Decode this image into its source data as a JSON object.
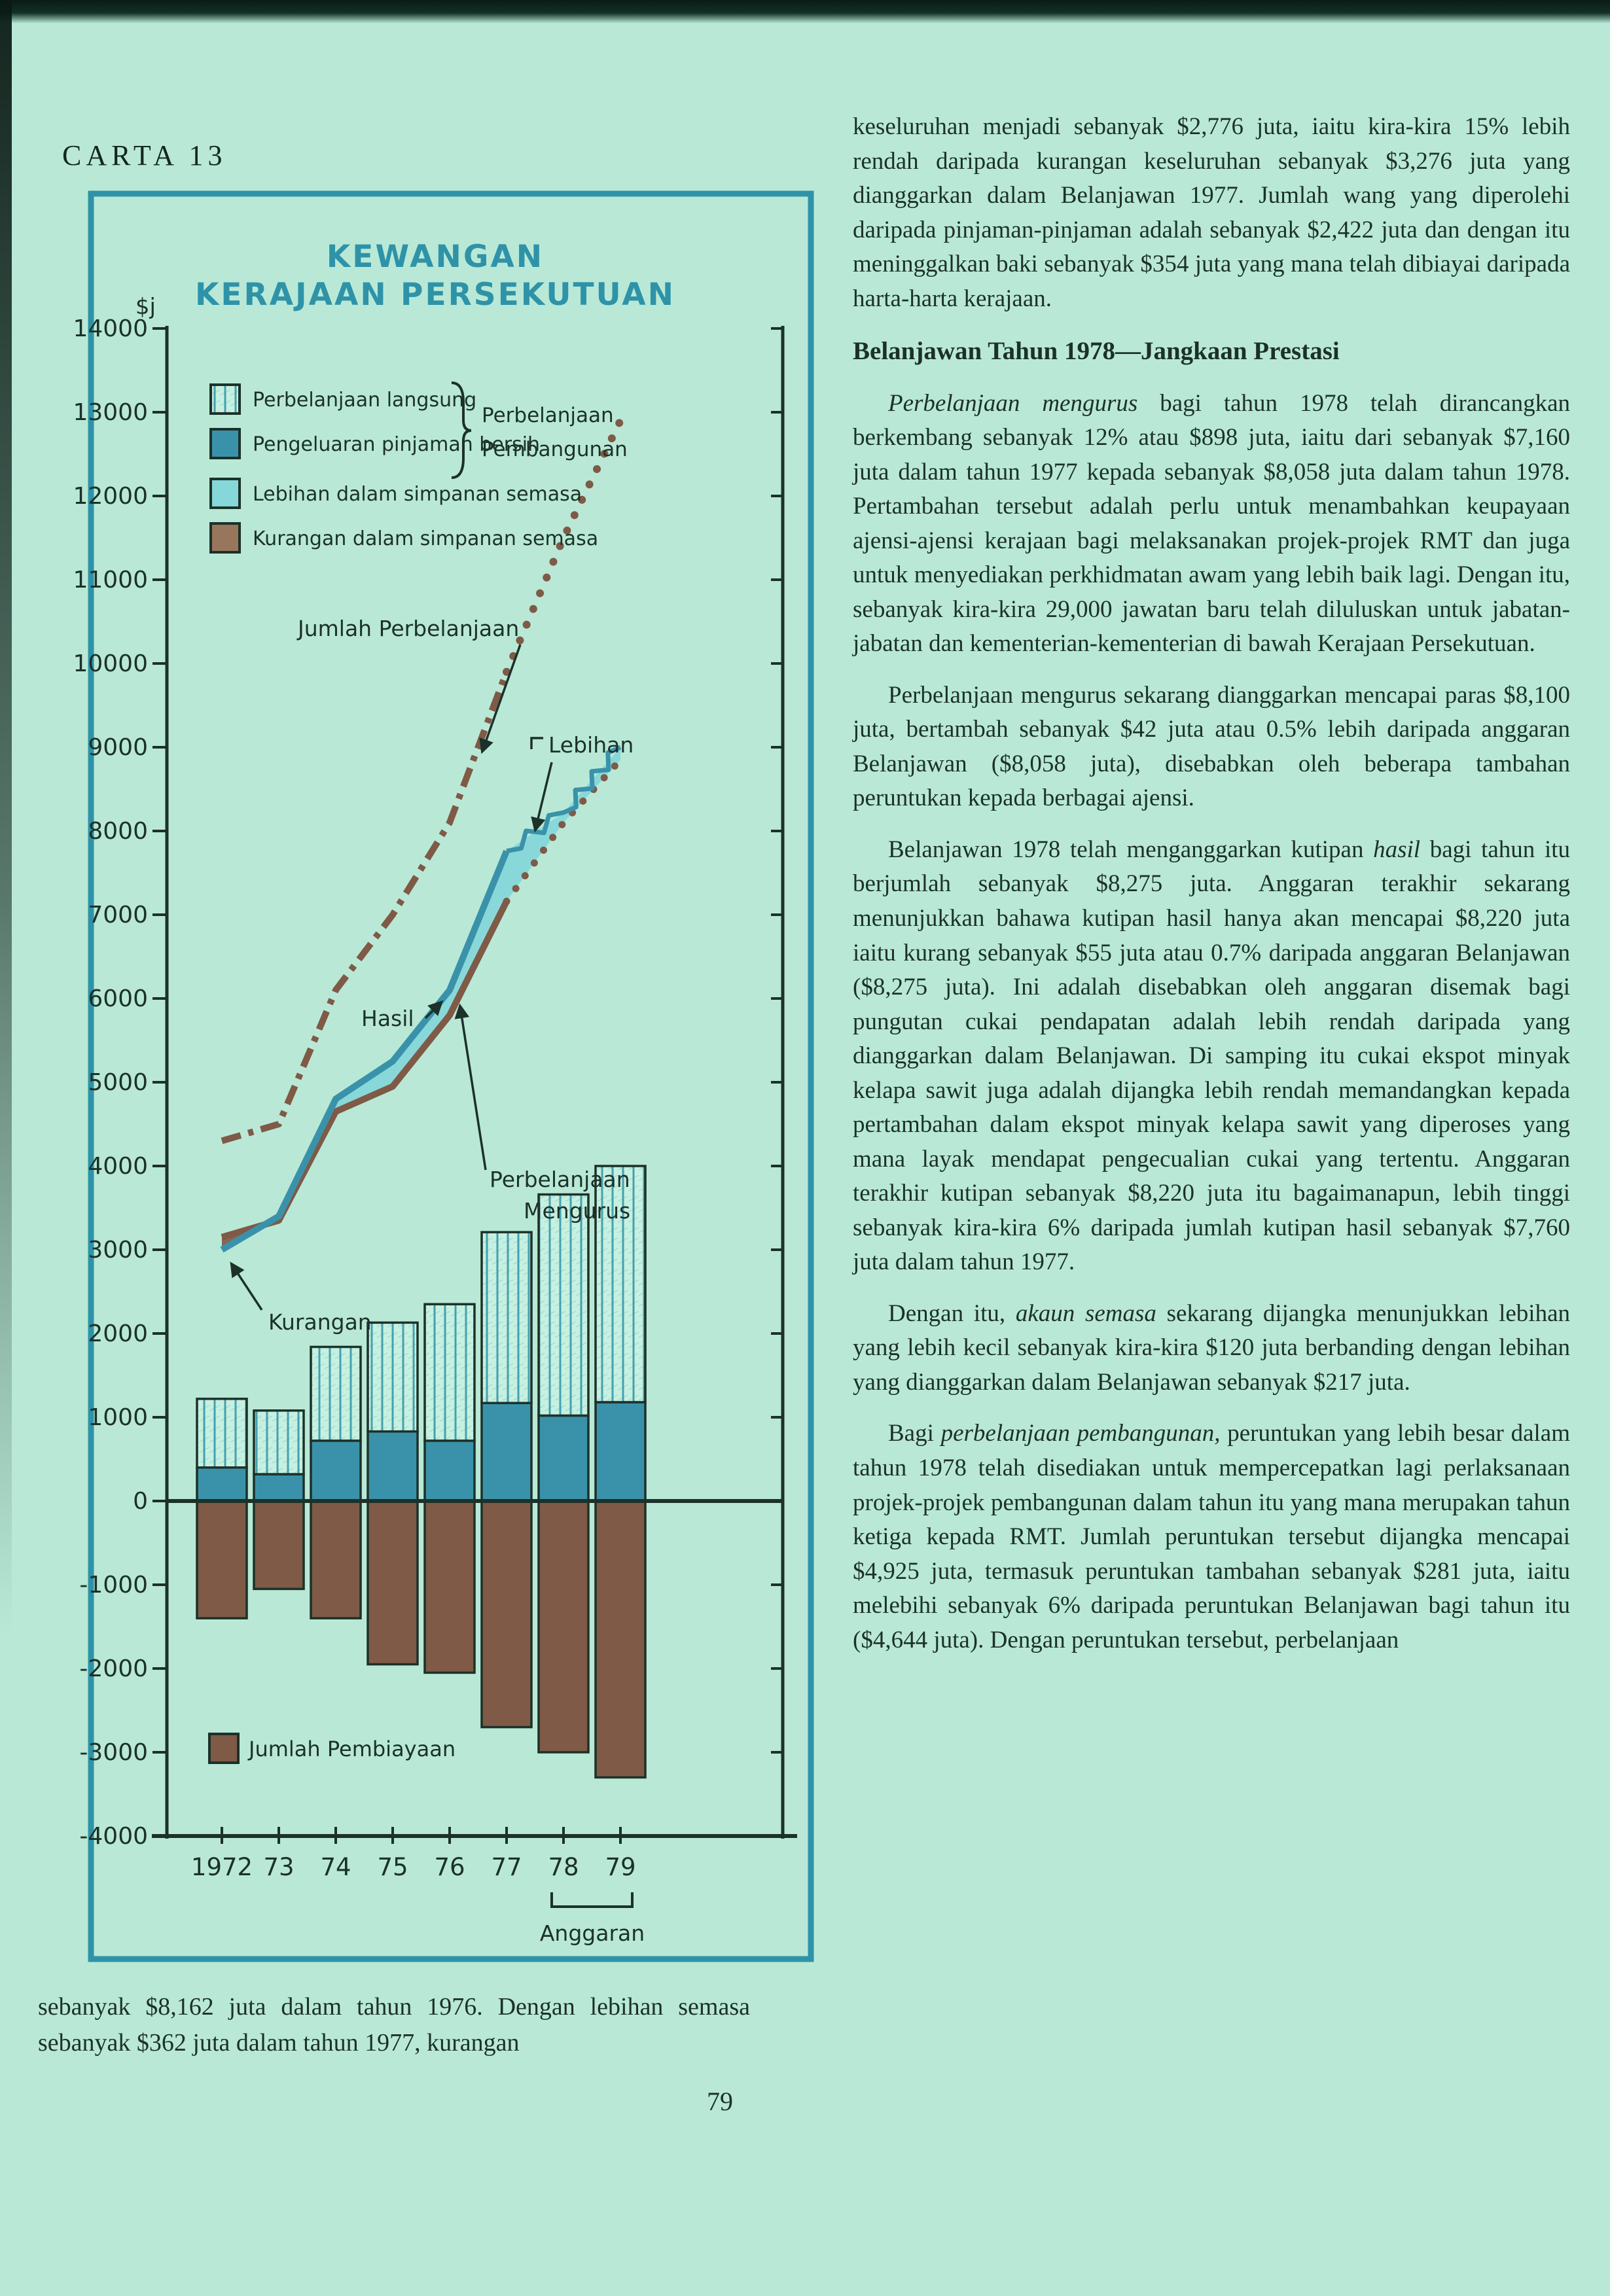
{
  "page": {
    "label": "CARTA 13",
    "page_number": "79",
    "left_column_bottom": "sebanyak $8,162 juta dalam tahun 1976. Dengan lebihan semasa sebanyak $362 juta dalam tahun 1977, kurangan"
  },
  "right_column": {
    "paragraphs": [
      {
        "type": "p",
        "indent": false,
        "segments": [
          {
            "text": "keseluruhan menjadi sebanyak $2,776 juta, iaitu kira-kira 15% lebih rendah daripada kurangan keseluruhan sebanyak $3,276 juta yang dianggarkan dalam Belanjawan 1977. Jumlah wang yang diperolehi daripada pinjaman-pinjaman adalah sebanyak $2,422 juta dan dengan itu meninggalkan baki sebanyak $354 juta yang mana telah dibiayai daripada harta-harta kerajaan."
          }
        ]
      },
      {
        "type": "h",
        "text": "Belanjawan Tahun 1978—Jangkaan Prestasi"
      },
      {
        "type": "p",
        "indent": true,
        "segments": [
          {
            "text": "Perbelanjaan mengurus",
            "italic": true
          },
          {
            "text": " bagi tahun 1978 telah dirancangkan berkembang sebanyak 12% atau $898 juta, iaitu dari sebanyak $7,160 juta dalam tahun 1977 kepada sebanyak $8,058 juta dalam tahun 1978. Pertambahan tersebut adalah perlu untuk menambahkan keupayaan ajensi-ajensi kerajaan bagi melaksanakan projek-projek RMT dan juga untuk menyediakan perkhidmatan awam yang lebih baik lagi. Dengan itu, sebanyak kira-kira 29,000 jawatan baru telah diluluskan untuk jabatan-jabatan dan kementerian-kementerian di bawah Kerajaan Persekutuan."
          }
        ]
      },
      {
        "type": "p",
        "indent": true,
        "segments": [
          {
            "text": "Perbelanjaan mengurus sekarang dianggarkan mencapai paras $8,100 juta, bertambah sebanyak $42 juta atau 0.5% lebih daripada anggaran Belanjawan ($8,058 juta), disebabkan oleh beberapa tambahan peruntukan kepada berbagai ajensi."
          }
        ]
      },
      {
        "type": "p",
        "indent": true,
        "segments": [
          {
            "text": "Belanjawan 1978 telah menganggarkan kutipan "
          },
          {
            "text": "hasil",
            "italic": true
          },
          {
            "text": " bagi tahun itu berjumlah sebanyak $8,275 juta. Anggaran terakhir sekarang menunjukkan bahawa kutipan hasil hanya akan mencapai $8,220 juta iaitu kurang sebanyak $55 juta atau 0.7% daripada anggaran Belanjawan ($8,275 juta). Ini adalah disebabkan oleh anggaran disemak bagi pungutan cukai pendapatan adalah lebih rendah daripada yang dianggarkan dalam Belanjawan. Di samping itu cukai ekspot minyak kelapa sawit juga adalah dijangka lebih rendah memandangkan kepada pertambahan dalam ekspot minyak kelapa sawit yang diperoses yang mana layak mendapat pengecualian cukai yang tertentu. Anggaran terakhir kutipan sebanyak $8,220 juta itu bagaimanapun, lebih tinggi sebanyak kira-kira 6% daripada jumlah kutipan hasil sebanyak $7,760 juta dalam tahun 1977."
          }
        ]
      },
      {
        "type": "p",
        "indent": true,
        "segments": [
          {
            "text": "Dengan itu, "
          },
          {
            "text": "akaun semasa",
            "italic": true
          },
          {
            "text": " sekarang dijangka menunjukkan lebihan yang lebih kecil sebanyak kira-kira $120 juta berbanding dengan lebihan yang dianggarkan dalam Belanjawan sebanyak $217 juta."
          }
        ]
      },
      {
        "type": "p",
        "indent": true,
        "segments": [
          {
            "text": "Bagi "
          },
          {
            "text": "perbelanjaan pembangunan,",
            "italic": true
          },
          {
            "text": " peruntukan yang lebih besar dalam tahun 1978 telah disediakan untuk mempercepatkan lagi perlaksanaan projek-projek pembangunan dalam tahun itu yang mana merupakan tahun ketiga kepada RMT. Jumlah peruntukan tersebut dijangka mencapai $4,925 juta, termasuk peruntukan tambahan sebanyak $281 juta, iaitu melebihi sebanyak 6% daripada peruntukan Belanjawan bagi tahun itu ($4,644 juta). Dengan peruntukan tersebut, perbelanjaan"
          }
        ]
      }
    ]
  },
  "chart_data": {
    "type": "bar",
    "title_lines": [
      "KEWANGAN",
      "KERAJAAN PERSEKUTUAN"
    ],
    "unit_label": "$j",
    "categories": [
      "1972",
      "73",
      "74",
      "75",
      "76",
      "77",
      "78",
      "79"
    ],
    "anggaran_label": "Anggaran",
    "anggaran_years": [
      "78",
      "79"
    ],
    "ylim": [
      -4000,
      14000
    ],
    "ytick_step": 1000,
    "grid": false,
    "series": [
      {
        "name": "Perbelanjaan langsung",
        "role": "bar-stack-top",
        "values": [
          820,
          760,
          1120,
          1300,
          1630,
          2040,
          2640,
          2820
        ]
      },
      {
        "name": "Pengeluaran pinjaman bersih",
        "role": "bar-stack-bottom",
        "values": [
          400,
          320,
          720,
          830,
          720,
          1170,
          1020,
          1180
        ]
      },
      {
        "name": "Jumlah Pembiayaan",
        "role": "bar-negative",
        "values": [
          -1400,
          -1050,
          -1400,
          -1950,
          -2050,
          -2700,
          -3000,
          -3300
        ]
      },
      {
        "name": "Hasil",
        "role": "line-solid-then-zigzag",
        "values": [
          3000,
          3400,
          4800,
          5250,
          6100,
          7760,
          8220,
          9000
        ]
      },
      {
        "name": "Perbelanjaan Mengurus",
        "role": "line-solid-then-dotted",
        "values": [
          3150,
          3350,
          4650,
          4950,
          5800,
          7160,
          8100,
          8850
        ]
      },
      {
        "name": "Jumlah Perbelanjaan",
        "role": "line-dashdot-then-dotted",
        "values": [
          4300,
          4500,
          6100,
          7000,
          8100,
          9900,
          11500,
          12900
        ]
      }
    ],
    "legend": {
      "position": "top-left-inside",
      "items": [
        {
          "swatch": "hatched",
          "label": "Perbelanjaan langsung"
        },
        {
          "swatch": "solid-blue",
          "label": "Pengeluaran pinjaman bersih"
        },
        {
          "swatch": "aqua",
          "label": "Lebihan dalam simpanan semasa"
        },
        {
          "swatch": "tan",
          "label": "Kurangan dalam simpanan semasa"
        }
      ],
      "brace_label_lines": [
        "Perbelanjaan",
        "Pembangunan"
      ],
      "bottom_item": {
        "swatch": "brown",
        "label": "Jumlah Pembiayaan"
      }
    },
    "annotations": {
      "jumlah_perbelanjaan": "Jumlah Perbelanjaan",
      "lebihan": "Lebihan",
      "hasil": "Hasil",
      "perbelanjaan_mengurus_lines": [
        "Perbelanjaan",
        "Mengurus"
      ],
      "kurangan": "Kurangan"
    },
    "colors": {
      "page_bg": "#b9e9d6",
      "ink": "#1c3129",
      "chart_teal": "#2e93a8",
      "bar_blue": "#3a92aa",
      "band_aqua": "#85d7da",
      "brown": "#7e5a47",
      "kurangan_tan": "#97765c",
      "hatch_bg": "#c6f0e0"
    }
  }
}
